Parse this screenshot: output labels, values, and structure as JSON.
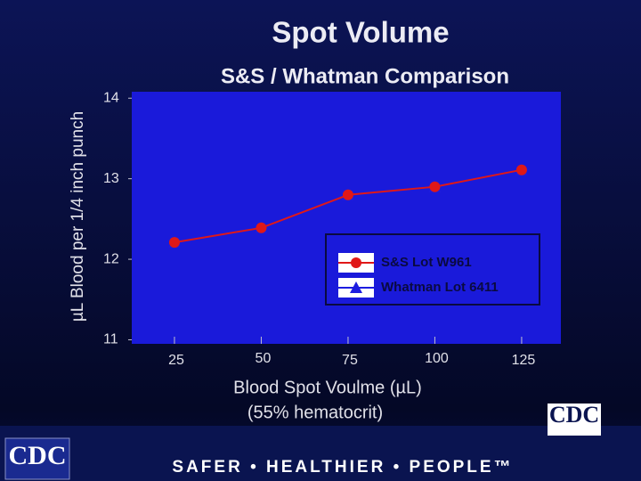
{
  "chart_data": {
    "type": "line",
    "title": "Spot Volume",
    "subtitle": "S&S / Whatman Comparison",
    "ylabel": "µL Blood per 1/4 inch punch",
    "xlabel": "Blood Spot Voulme (µL)",
    "xlabel_note": "(55% hematocrit)",
    "x": [
      25,
      50,
      75,
      100,
      125
    ],
    "series": [
      {
        "name": "S&S Lot W961",
        "color": "#e01818",
        "marker": "circle",
        "values": [
          12.21,
          12.39,
          12.8,
          12.9,
          13.11
        ]
      },
      {
        "name": "Whatman Lot 6411",
        "color": "#1c1ce0",
        "marker": "triangle",
        "values": [
          12.21,
          12.39,
          12.8,
          12.9,
          13.11
        ]
      }
    ],
    "xlim": [
      12.7,
      136.3
    ],
    "xticks": [
      25,
      50,
      75,
      100,
      125
    ],
    "ylim": [
      10.95,
      14.08
    ],
    "yticks": [
      11,
      12,
      13,
      14
    ],
    "grid": false,
    "legend": "lower right"
  },
  "footer": {
    "slogan": "SAFER • HEALTHIER • PEOPLE™",
    "logo_left": "CDC",
    "logo_right": "CDC"
  }
}
